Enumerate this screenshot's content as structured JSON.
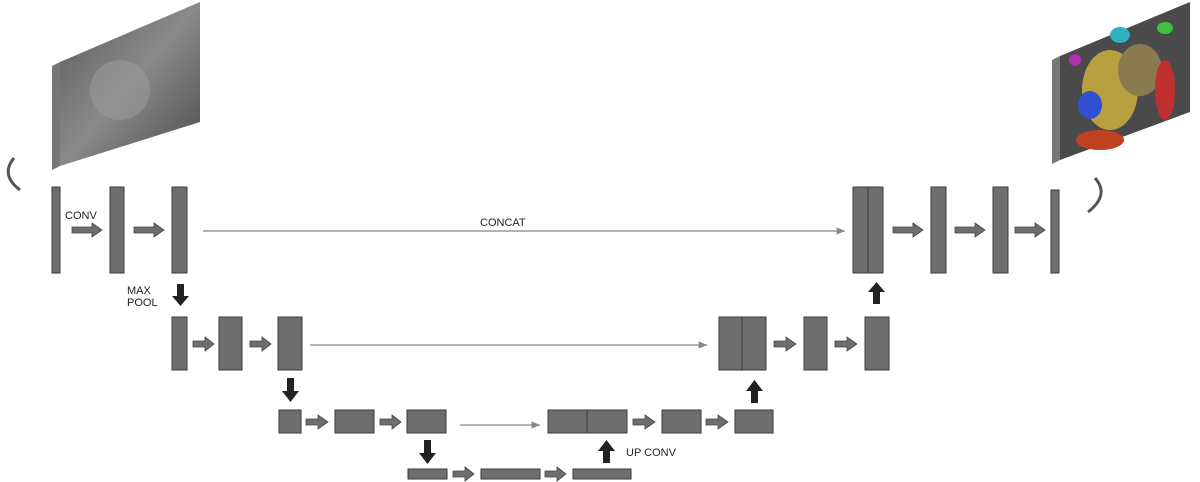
{
  "labels": {
    "conv": "CONV",
    "max_pool": [
      "MAX",
      "POOL"
    ],
    "concat": "CONCAT",
    "up_conv": "UP CONV"
  }
}
